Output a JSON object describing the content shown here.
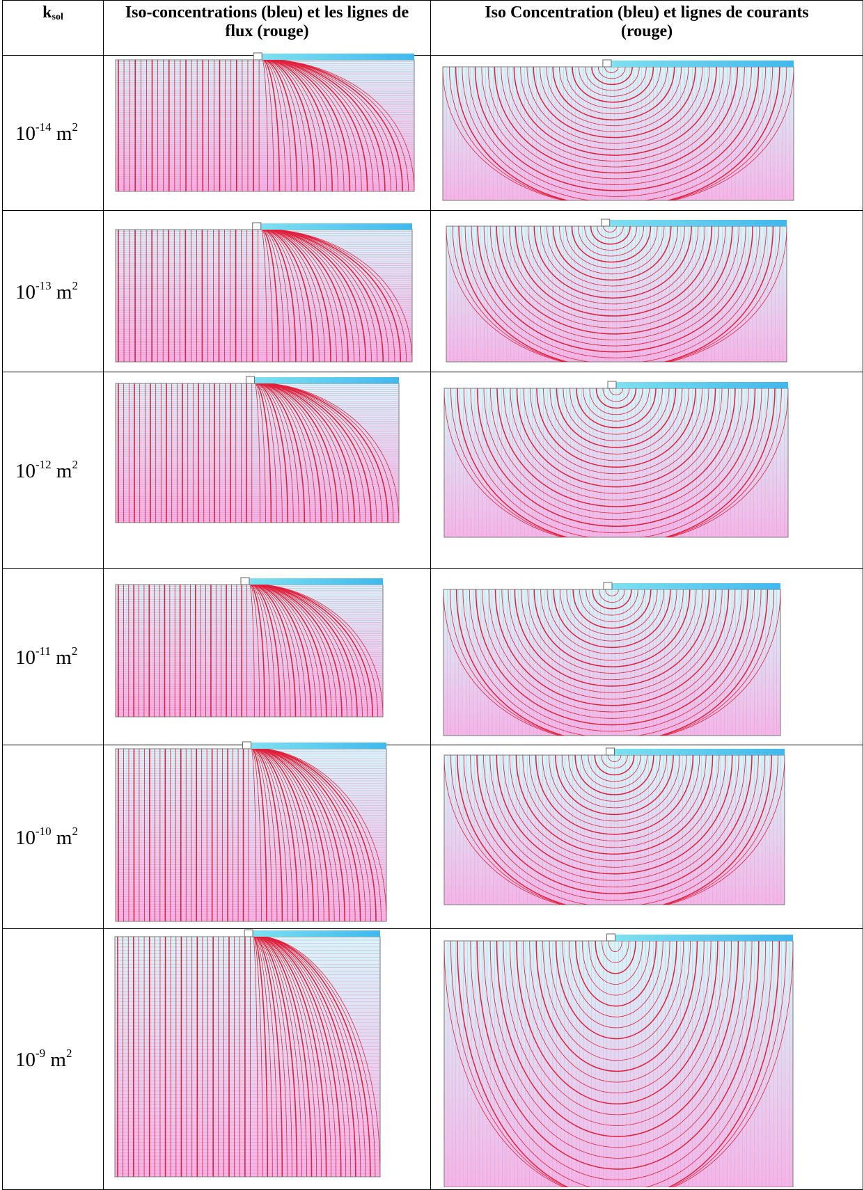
{
  "table": {
    "header": {
      "ksol": {
        "symbol": "k",
        "subscript": "sol"
      },
      "col1": "Iso-concentrations (bleu) et les lignes de flux (rouge)",
      "col2": "Iso Concentration (bleu) et lignes de courants (rouge)"
    },
    "rows": [
      {
        "base": "10",
        "exp": "-14",
        "unit": "m",
        "unit_exp": "2"
      },
      {
        "base": "10",
        "exp": "-13",
        "unit": "m",
        "unit_exp": "2"
      },
      {
        "base": "10",
        "exp": "-12",
        "unit": "m",
        "unit_exp": "2"
      },
      {
        "base": "10",
        "exp": "-11",
        "unit": "m",
        "unit_exp": "2"
      },
      {
        "base": "10",
        "exp": "-10",
        "unit": "m",
        "unit_exp": "2"
      },
      {
        "base": "10",
        "exp": "-9",
        "unit": "m",
        "unit_exp": "2"
      }
    ]
  }
}
